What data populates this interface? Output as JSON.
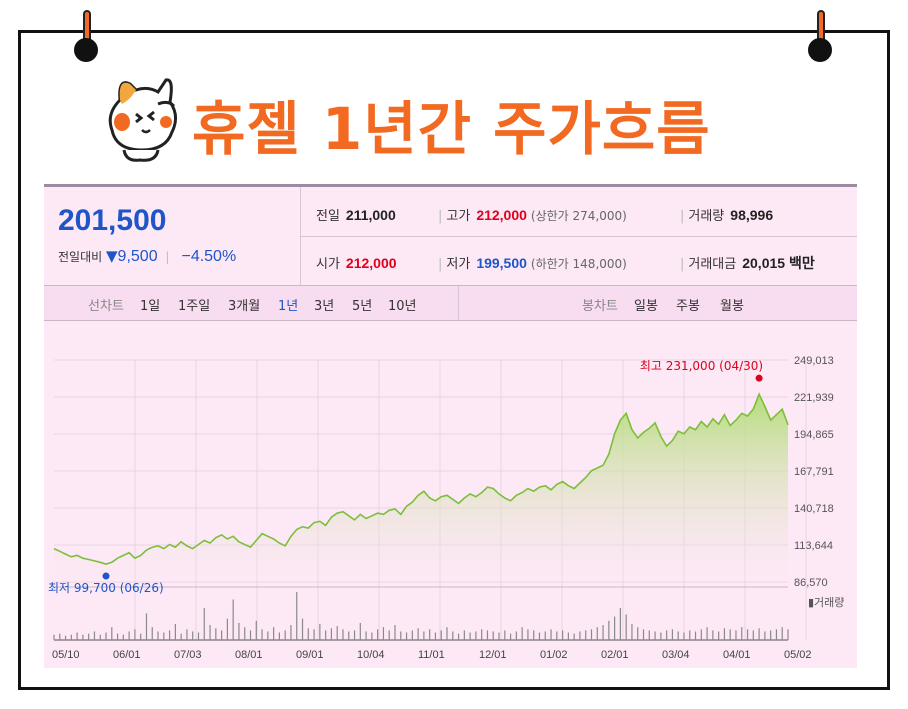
{
  "title": "휴젤 1년간 주가흐름",
  "quote": {
    "price": "201,500",
    "change_label": "전일대비",
    "change_arrow": "▼",
    "change_value": "9,500",
    "change_pct": "−4.50%",
    "prev_close_label": "전일",
    "prev_close": "211,000",
    "high_label": "고가",
    "high": "212,000",
    "upper_limit": "(상한가 274,000)",
    "volume_label": "거래량",
    "volume": "98,996",
    "open_label": "시가",
    "open": "212,000",
    "low_label": "저가",
    "low": "199,500",
    "lower_limit": "(하한가 148,000)",
    "amount_label": "거래대금",
    "amount": "20,015 백만"
  },
  "tabs": {
    "line_label": "선차트",
    "line_periods": [
      "1일",
      "1주일",
      "3개월",
      "1년",
      "3년",
      "5년",
      "10년"
    ],
    "active": "1년",
    "candle_label": "봉차트",
    "candle_periods": [
      "일봉",
      "주봉",
      "월봉"
    ]
  },
  "chart_data": {
    "type": "area",
    "x_ticks": [
      "05/10",
      "06/01",
      "07/03",
      "08/01",
      "09/01",
      "10/04",
      "11/01",
      "12/01",
      "01/02",
      "02/01",
      "03/04",
      "04/01",
      "05/02"
    ],
    "y_ticks": [
      "249,013",
      "221,939",
      "194,865",
      "167,791",
      "140,718",
      "113,644",
      "86,570"
    ],
    "ylim": [
      86570,
      249013
    ],
    "max_annotation": "최고 231,000 (04/30)",
    "min_annotation": "최저 99,700 (06/26)",
    "volume_label": "▮거래량",
    "series": [
      {
        "values": [
          111000,
          109000,
          107000,
          105000,
          106000,
          104000,
          103000,
          102000,
          101000,
          99700,
          101000,
          104000,
          106000,
          108000,
          104000,
          106000,
          110000,
          112000,
          113000,
          111000,
          114000,
          112000,
          116000,
          113000,
          111000,
          114000,
          117000,
          115000,
          119000,
          121000,
          118000,
          120000,
          116000,
          114000,
          112000,
          117000,
          122000,
          120000,
          118000,
          115000,
          113000,
          120000,
          125000,
          127000,
          126000,
          130000,
          131000,
          128000,
          134000,
          137000,
          138000,
          135000,
          132000,
          136000,
          133000,
          135000,
          137000,
          136000,
          139000,
          140000,
          136000,
          142000,
          145000,
          150000,
          153000,
          148000,
          146000,
          149000,
          150000,
          147000,
          144000,
          148000,
          151000,
          149000,
          152000,
          156000,
          155000,
          151000,
          148000,
          146000,
          150000,
          152000,
          155000,
          153000,
          156000,
          157000,
          154000,
          158000,
          160000,
          157000,
          155000,
          159000,
          163000,
          168000,
          170000,
          172000,
          180000,
          195000,
          205000,
          210000,
          198000,
          192000,
          196000,
          199000,
          203000,
          193000,
          186000,
          190000,
          197000,
          195000,
          200000,
          198000,
          204000,
          200000,
          206000,
          202000,
          209000,
          201000,
          205000,
          210000,
          208000,
          213000,
          224000,
          215000,
          205000,
          209000,
          213000,
          201500
        ]
      }
    ],
    "volume": [
      5,
      6,
      4,
      5,
      7,
      5,
      6,
      8,
      5,
      7,
      12,
      6,
      5,
      8,
      10,
      6,
      25,
      12,
      8,
      7,
      9,
      15,
      6,
      10,
      8,
      7,
      30,
      14,
      11,
      9,
      20,
      38,
      16,
      12,
      9,
      18,
      10,
      8,
      12,
      7,
      9,
      14,
      45,
      20,
      11,
      10,
      15,
      9,
      11,
      13,
      10,
      8,
      9,
      16,
      8,
      7,
      10,
      12,
      9,
      14,
      8,
      7,
      9,
      11,
      8,
      10,
      7,
      9,
      12,
      8,
      6,
      9,
      7,
      8,
      10,
      9,
      8,
      7,
      9,
      6,
      8,
      12,
      10,
      9,
      7,
      8,
      10,
      8,
      9,
      7,
      6,
      8,
      9,
      10,
      12,
      14,
      18,
      22,
      30,
      24,
      15,
      12,
      10,
      9,
      8,
      7,
      9,
      10,
      8,
      7,
      9,
      8,
      10,
      12,
      9,
      8,
      11,
      10,
      9,
      12,
      10,
      9,
      11,
      8,
      9,
      10,
      12,
      10
    ]
  }
}
